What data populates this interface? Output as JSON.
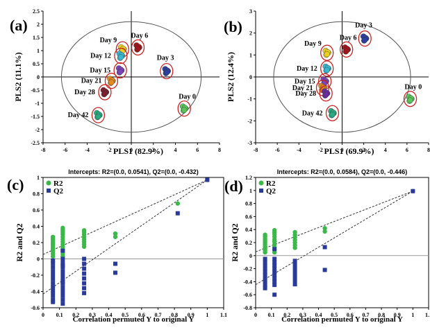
{
  "panel_labels": [
    "(a)",
    "(b)",
    "(c)",
    "(d)"
  ],
  "colors": {
    "axis": "#000000",
    "ellipse": "#cc2222",
    "circle": "#555555",
    "r2": "#3cb84a",
    "q2": "#2a3a9a",
    "dashed": "#333333",
    "zero_line": "#999999"
  },
  "chart_data": [
    {
      "panel": "(a)",
      "type": "scatter",
      "xlabel": "PLS1 (82.9%)",
      "ylabel": "PLS2 (11.1%)",
      "xlim": [
        -8,
        8
      ],
      "ylim": [
        -2.5,
        2.5
      ],
      "xticks": [
        -8,
        -6,
        -4,
        -2,
        0,
        2,
        4,
        6,
        8
      ],
      "yticks": [
        -2.5,
        -2,
        -1.5,
        -1,
        -0.5,
        0,
        0.5,
        1,
        1.5,
        2,
        2.5
      ],
      "groups": [
        {
          "name": "Day 0",
          "color": "#5cc25c",
          "x": 4.8,
          "y": -1.2
        },
        {
          "name": "Day 3",
          "color": "#2d3fa0",
          "x": 3.2,
          "y": 0.22
        },
        {
          "name": "Day 6",
          "color": "#a0151b",
          "x": 0.6,
          "y": 1.12
        },
        {
          "name": "Day 9",
          "color": "#e8d020",
          "x": -0.8,
          "y": 1.05
        },
        {
          "name": "Day 12",
          "color": "#3ab8d0",
          "x": -0.95,
          "y": 0.8
        },
        {
          "name": "Day 15",
          "color": "#7a45b8",
          "x": -1.0,
          "y": 0.25
        },
        {
          "name": "Day 21",
          "color": "#e08a20",
          "x": -1.8,
          "y": -0.15
        },
        {
          "name": "Day 28",
          "color": "#7a2030",
          "x": -2.4,
          "y": -0.58
        },
        {
          "name": "Day 42",
          "color": "#2aaa80",
          "x": -3.0,
          "y": -1.45
        }
      ]
    },
    {
      "panel": "(b)",
      "type": "scatter",
      "xlabel": "PLS1 (69.9%)",
      "ylabel": "PLS2 (12.4%)",
      "xlim": [
        -8,
        8
      ],
      "ylim": [
        -3,
        3
      ],
      "xticks": [
        -8,
        -6,
        -4,
        -2,
        0,
        2,
        4,
        6,
        8
      ],
      "yticks": [
        -3,
        -2,
        -1,
        0,
        1,
        2,
        3
      ],
      "groups": [
        {
          "name": "Day 0",
          "color": "#5cc25c",
          "x": 6.3,
          "y": -1.0
        },
        {
          "name": "Day 3",
          "color": "#2d3fa0",
          "x": 2.1,
          "y": 1.75
        },
        {
          "name": "Day 6",
          "color": "#a0151b",
          "x": 0.4,
          "y": 1.25
        },
        {
          "name": "Day 9",
          "color": "#e8d020",
          "x": -1.4,
          "y": 1.1
        },
        {
          "name": "Day 12",
          "color": "#3ab8d0",
          "x": -1.4,
          "y": 0.38
        },
        {
          "name": "Day 15",
          "color": "#7a45b8",
          "x": -1.6,
          "y": -0.2
        },
        {
          "name": "Day 21",
          "color": "#e08a20",
          "x": -1.8,
          "y": -0.5
        },
        {
          "name": "Day 28",
          "color": "#6a2aa0",
          "x": -1.5,
          "y": -0.75
        },
        {
          "name": "Day 42",
          "color": "#2aaa80",
          "x": -0.9,
          "y": -1.65
        }
      ]
    },
    {
      "panel": "(c)",
      "type": "scatter",
      "title": "Intercepts: R2=(0.0, 0.0541), Q2=(0.0, -0.432)",
      "xlabel": "Correlation permuted Y to original Y",
      "ylabel": "R2 and Q2",
      "xlim": [
        0,
        1.1
      ],
      "ylim": [
        -0.6,
        1.0
      ],
      "xticks": [
        "0",
        "0.1",
        "0.2",
        "0.3",
        "0.4",
        "0.5",
        "0.6",
        "0.7",
        "0.8",
        "0.9",
        "1",
        "1.1"
      ],
      "yticks": [
        "-0.6",
        "-0.4",
        "-0.2",
        "0",
        "0.2",
        "0.4",
        "0.6",
        "0.8",
        "1"
      ],
      "series": [
        {
          "name": "R2",
          "color": "#3cb84a",
          "x": [
            0.06,
            0.06,
            0.06,
            0.06,
            0.06,
            0.06,
            0.06,
            0.06,
            0.06,
            0.06,
            0.06,
            0.06,
            0.12,
            0.12,
            0.12,
            0.12,
            0.12,
            0.12,
            0.12,
            0.12,
            0.12,
            0.12,
            0.12,
            0.12,
            0.12,
            0.12,
            0.12,
            0.25,
            0.25,
            0.25,
            0.25,
            0.25,
            0.25,
            0.25,
            0.25,
            0.44,
            0.44,
            0.82,
            1.0
          ],
          "y": [
            0.03,
            0.06,
            0.09,
            0.11,
            0.13,
            0.15,
            0.17,
            0.19,
            0.21,
            0.23,
            0.25,
            0.27,
            0.03,
            0.06,
            0.09,
            0.12,
            0.15,
            0.18,
            0.21,
            0.24,
            0.27,
            0.3,
            0.32,
            0.34,
            0.36,
            0.38,
            0.1,
            0.15,
            0.18,
            0.21,
            0.24,
            0.27,
            0.3,
            0.33,
            0.35,
            0.27,
            0.31,
            0.68,
            0.97
          ]
        },
        {
          "name": "Q2",
          "color": "#2a3a9a",
          "x": [
            0.06,
            0.06,
            0.06,
            0.06,
            0.06,
            0.06,
            0.06,
            0.06,
            0.06,
            0.06,
            0.06,
            0.06,
            0.12,
            0.12,
            0.12,
            0.12,
            0.12,
            0.12,
            0.12,
            0.12,
            0.12,
            0.12,
            0.12,
            0.12,
            0.12,
            0.12,
            0.12,
            0.25,
            0.25,
            0.25,
            0.25,
            0.25,
            0.25,
            0.25,
            0.25,
            0.44,
            0.44,
            0.82,
            1.0
          ],
          "y": [
            -0.05,
            -0.1,
            -0.15,
            -0.2,
            -0.25,
            -0.3,
            -0.35,
            -0.4,
            -0.45,
            -0.5,
            -0.53,
            -0.02,
            -0.05,
            -0.1,
            -0.15,
            -0.2,
            -0.25,
            -0.3,
            -0.35,
            -0.4,
            -0.45,
            -0.5,
            -0.55,
            -0.08,
            0.1,
            0.0,
            -0.28,
            -0.12,
            -0.18,
            -0.24,
            -0.3,
            -0.36,
            -0.42,
            -0.06,
            0.0,
            -0.06,
            -0.17,
            0.56,
            0.97
          ]
        }
      ],
      "fit_lines": [
        {
          "series": "R2",
          "x": [
            0,
            1.0
          ],
          "y": [
            0.0541,
            0.97
          ]
        },
        {
          "series": "Q2",
          "x": [
            0,
            1.0
          ],
          "y": [
            -0.432,
            0.97
          ]
        }
      ]
    },
    {
      "panel": "(d)",
      "type": "scatter",
      "title": "Intercepts: R2=(0.0, 0.0584), Q2=(0.0, -0.446)",
      "xlabel": "Correlation permuted Y to original Y",
      "ylabel": "R2 and Q2",
      "xlim": [
        0,
        1.1
      ],
      "ylim": [
        -0.8,
        1.2
      ],
      "xticks": [
        "0",
        "0.1",
        "0.2",
        "0.3",
        "0.4",
        "0.5",
        "0.6",
        "0.7",
        "0.8",
        "0.9",
        "1",
        "1.1"
      ],
      "yticks": [
        "-0.8",
        "-0.6",
        "-0.4",
        "-0.2",
        "0",
        "0.2",
        "0.4",
        "0.6",
        "0.8",
        "1",
        "1.2"
      ],
      "series": [
        {
          "name": "R2",
          "color": "#3cb84a",
          "x": [
            0.06,
            0.06,
            0.06,
            0.06,
            0.06,
            0.06,
            0.06,
            0.06,
            0.06,
            0.06,
            0.12,
            0.12,
            0.12,
            0.12,
            0.12,
            0.12,
            0.12,
            0.12,
            0.12,
            0.12,
            0.12,
            0.25,
            0.25,
            0.25,
            0.25,
            0.25,
            0.25,
            0.25,
            0.44,
            0.44,
            1.0
          ],
          "y": [
            0.05,
            0.08,
            0.11,
            0.14,
            0.17,
            0.2,
            0.23,
            0.26,
            0.29,
            0.32,
            0.05,
            0.09,
            0.13,
            0.17,
            0.21,
            0.25,
            0.29,
            0.33,
            0.36,
            0.39,
            0.22,
            0.12,
            0.16,
            0.2,
            0.24,
            0.28,
            0.32,
            0.36,
            0.37,
            0.42,
            0.99
          ]
        },
        {
          "name": "Q2",
          "color": "#2a3a9a",
          "x": [
            0.06,
            0.06,
            0.06,
            0.06,
            0.06,
            0.06,
            0.06,
            0.06,
            0.06,
            0.06,
            0.12,
            0.12,
            0.12,
            0.12,
            0.12,
            0.12,
            0.12,
            0.12,
            0.12,
            0.12,
            0.12,
            0.25,
            0.25,
            0.25,
            0.25,
            0.25,
            0.25,
            0.25,
            0.44,
            0.44,
            1.0
          ],
          "y": [
            -0.05,
            -0.1,
            -0.15,
            -0.2,
            -0.25,
            -0.3,
            -0.35,
            -0.4,
            -0.45,
            -0.5,
            -0.05,
            -0.1,
            -0.15,
            -0.2,
            -0.25,
            -0.3,
            -0.35,
            -0.4,
            -0.45,
            -0.6,
            0.1,
            -0.08,
            -0.14,
            -0.2,
            -0.26,
            -0.32,
            -0.38,
            -0.44,
            0.13,
            -0.22,
            0.99
          ]
        }
      ],
      "fit_lines": [
        {
          "series": "R2",
          "x": [
            0,
            1.0
          ],
          "y": [
            0.0584,
            0.99
          ]
        },
        {
          "series": "Q2",
          "x": [
            0,
            1.0
          ],
          "y": [
            -0.446,
            0.99
          ]
        }
      ]
    }
  ]
}
